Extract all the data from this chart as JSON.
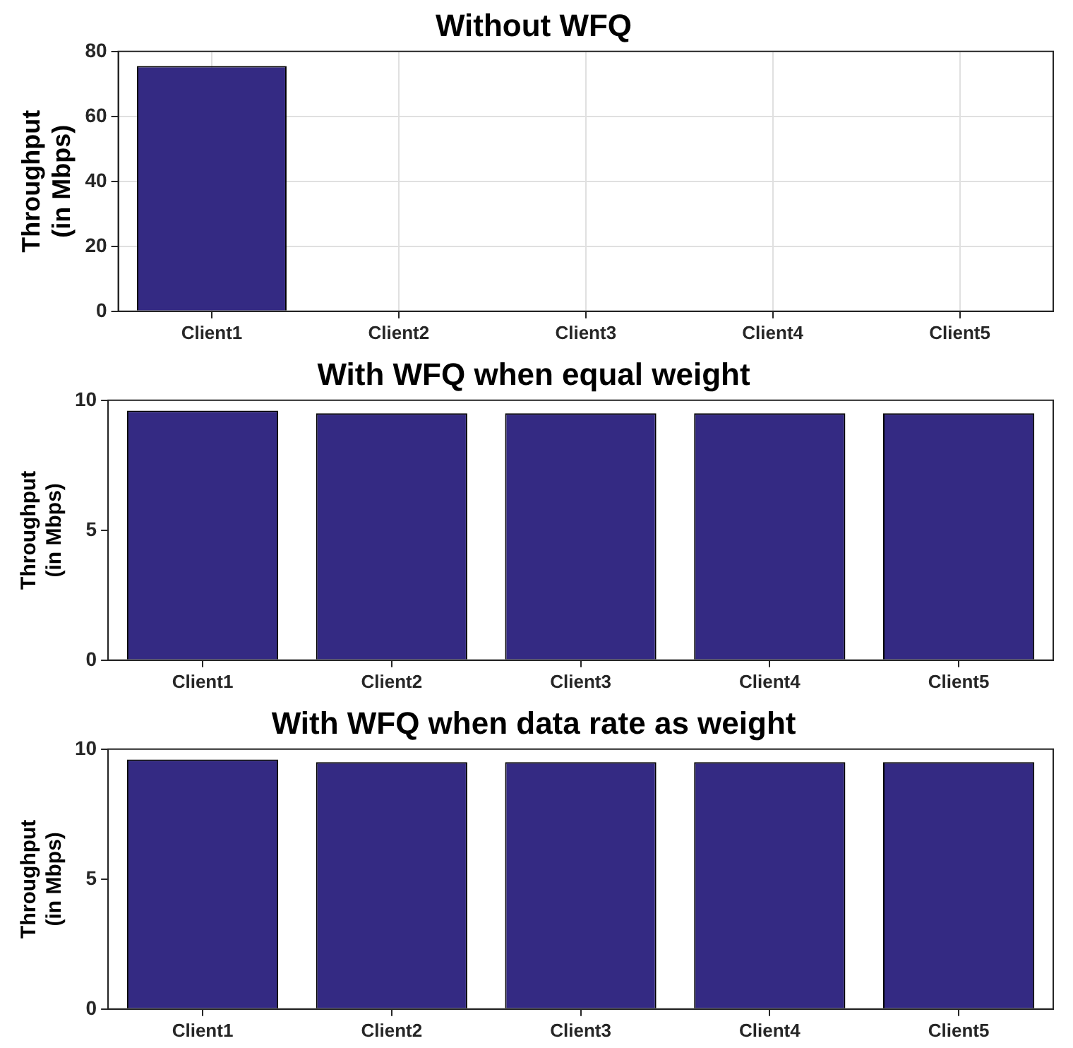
{
  "chart_data": [
    {
      "type": "bar",
      "title": "Without WFQ",
      "ylabel": "Throughput\n(in Mbps)",
      "categories": [
        "Client1",
        "Client2",
        "Client3",
        "Client4",
        "Client5"
      ],
      "values": [
        75.5,
        0,
        0,
        0,
        0
      ],
      "color": "#342a83",
      "ylim": [
        0,
        80
      ],
      "yticks": [
        0,
        20,
        40,
        60,
        80
      ],
      "grid": true
    },
    {
      "type": "bar",
      "title": "With WFQ when equal weight",
      "ylabel": "Throughput\n(in Mbps)",
      "categories": [
        "Client1",
        "Client2",
        "Client3",
        "Client4",
        "Client5"
      ],
      "values": [
        9.6,
        9.5,
        9.5,
        9.5,
        9.5
      ],
      "color": "#342a83",
      "ylim": [
        0,
        10
      ],
      "yticks": [
        0,
        5,
        10
      ],
      "grid": false
    },
    {
      "type": "bar",
      "title": "With WFQ when data rate as weight",
      "ylabel": "Throughput\n(in Mbps)",
      "categories": [
        "Client1",
        "Client2",
        "Client3",
        "Client4",
        "Client5"
      ],
      "values": [
        9.6,
        9.5,
        9.5,
        9.5,
        9.5
      ],
      "color": "#342a83",
      "ylim": [
        0,
        10
      ],
      "yticks": [
        0,
        5,
        10
      ],
      "grid": false
    }
  ]
}
